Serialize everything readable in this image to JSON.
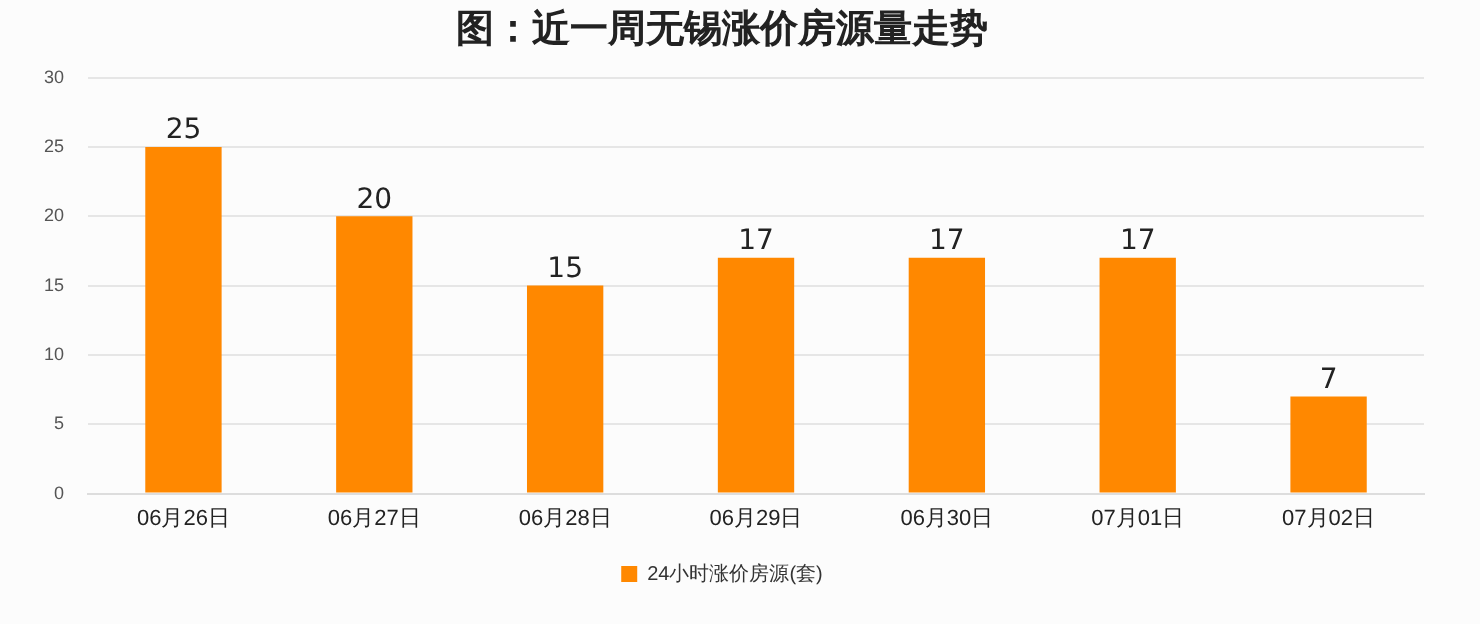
{
  "chart_data": {
    "type": "bar",
    "title": "图：近一周无锡涨价房源量走势",
    "categories": [
      "06月26日",
      "06月27日",
      "06月28日",
      "06月29日",
      "06月30日",
      "07月01日",
      "07月02日"
    ],
    "series": [
      {
        "name": "24小时涨价房源(套)",
        "color": "#ff8800",
        "values": [
          25,
          20,
          15,
          17,
          17,
          17,
          7
        ]
      }
    ],
    "ylim": [
      0,
      30
    ],
    "yticks": [
      0,
      5,
      10,
      15,
      20,
      25,
      30
    ],
    "grid": "y",
    "legend": "bottom",
    "data_labels": true
  }
}
